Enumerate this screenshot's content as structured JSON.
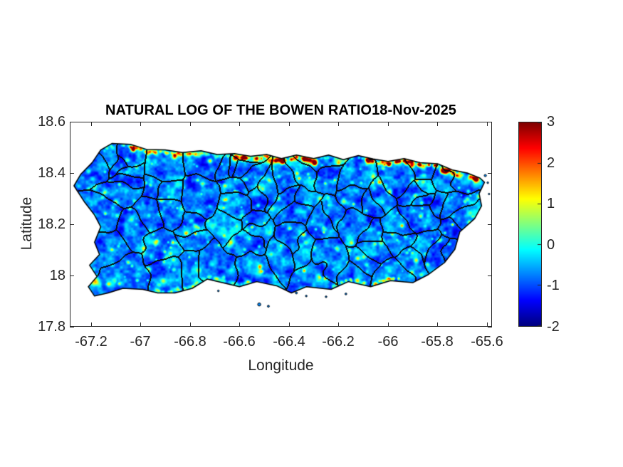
{
  "chart_data": {
    "type": "heatmap",
    "title": "NATURAL LOG OF THE BOWEN RATIO18-Nov-2025",
    "xlabel": "Longitude",
    "ylabel": "Latitude",
    "region": "Puerto Rico with municipality boundaries overlaid",
    "xlim": [
      -67.285,
      -65.58
    ],
    "ylim": [
      17.8,
      18.6
    ],
    "x_ticks": [
      -67.2,
      -67,
      -66.8,
      -66.6,
      -66.4,
      -66.2,
      -66,
      -65.8,
      -65.6
    ],
    "x_tick_labels": [
      "-67.2",
      "-67",
      "-66.8",
      "-66.6",
      "-66.4",
      "-66.2",
      "-66",
      "-65.8",
      "-65.6"
    ],
    "y_ticks": [
      17.8,
      18,
      18.2,
      18.4,
      18.6
    ],
    "y_tick_labels": [
      "17.8",
      "18",
      "18.2",
      "18.4",
      "18.6"
    ],
    "grid": false,
    "colorbar": {
      "min": -2,
      "max": 3,
      "ticks": [
        3,
        2,
        1,
        0,
        -1,
        -2
      ],
      "tick_labels": [
        "3",
        "2",
        "1",
        "0",
        "-1",
        "-2"
      ],
      "colormap": "jet",
      "position": "right"
    },
    "values_note": "ln(Bowen ratio) over Puerto Rico: mostly -1.3 to 0.2 (blue/cyan mottle) with green-yellow speckles; orange hotspots (~1.5-2) in strips along the north coast and a large orange patch at the Cabo Rojo salt flats (southwest tip); sea is white",
    "coastline": [
      [
        -67.16,
        18.49
      ],
      [
        -67.115,
        18.515
      ],
      [
        -67.04,
        18.512
      ],
      [
        -66.975,
        18.492
      ],
      [
        -66.9,
        18.49
      ],
      [
        -66.83,
        18.48
      ],
      [
        -66.755,
        18.487
      ],
      [
        -66.69,
        18.472
      ],
      [
        -66.62,
        18.476
      ],
      [
        -66.555,
        18.465
      ],
      [
        -66.49,
        18.472
      ],
      [
        -66.43,
        18.456
      ],
      [
        -66.37,
        18.47
      ],
      [
        -66.3,
        18.456
      ],
      [
        -66.24,
        18.47
      ],
      [
        -66.18,
        18.452
      ],
      [
        -66.12,
        18.468
      ],
      [
        -66.06,
        18.455
      ],
      [
        -66.0,
        18.445
      ],
      [
        -65.935,
        18.456
      ],
      [
        -65.87,
        18.44
      ],
      [
        -65.8,
        18.436
      ],
      [
        -65.74,
        18.412
      ],
      [
        -65.68,
        18.4
      ],
      [
        -65.628,
        18.38
      ],
      [
        -65.61,
        18.364
      ],
      [
        -65.632,
        18.32
      ],
      [
        -65.622,
        18.272
      ],
      [
        -65.65,
        18.222
      ],
      [
        -65.71,
        18.17
      ],
      [
        -65.73,
        18.102
      ],
      [
        -65.772,
        18.05
      ],
      [
        -65.84,
        18.002
      ],
      [
        -65.9,
        17.972
      ],
      [
        -65.99,
        17.98
      ],
      [
        -66.07,
        17.956
      ],
      [
        -66.16,
        17.976
      ],
      [
        -66.23,
        17.946
      ],
      [
        -66.33,
        17.956
      ],
      [
        -66.39,
        17.932
      ],
      [
        -66.45,
        17.96
      ],
      [
        -66.53,
        17.976
      ],
      [
        -66.6,
        17.956
      ],
      [
        -66.66,
        17.97
      ],
      [
        -66.73,
        17.986
      ],
      [
        -66.79,
        17.95
      ],
      [
        -66.86,
        17.932
      ],
      [
        -66.93,
        17.932
      ],
      [
        -66.99,
        17.946
      ],
      [
        -67.07,
        17.95
      ],
      [
        -67.13,
        17.932
      ],
      [
        -67.185,
        17.92
      ],
      [
        -67.21,
        17.956
      ],
      [
        -67.175,
        17.996
      ],
      [
        -67.205,
        18.04
      ],
      [
        -67.165,
        18.082
      ],
      [
        -67.185,
        18.13
      ],
      [
        -67.16,
        18.19
      ],
      [
        -67.185,
        18.236
      ],
      [
        -67.225,
        18.286
      ],
      [
        -67.268,
        18.35
      ],
      [
        -67.24,
        18.396
      ],
      [
        -67.195,
        18.44
      ]
    ],
    "islets": [
      [
        -66.52,
        17.887,
        2.2
      ],
      [
        -66.483,
        17.88,
        1.4
      ],
      [
        -66.37,
        17.932,
        1.4
      ],
      [
        -66.33,
        17.92,
        1.2
      ],
      [
        -66.25,
        17.917,
        1.2
      ],
      [
        -66.17,
        17.928,
        1.3
      ],
      [
        -65.607,
        18.39,
        1.6
      ],
      [
        -65.597,
        18.362,
        1.2
      ],
      [
        -66.685,
        17.94,
        1.2
      ],
      [
        -65.592,
        18.318,
        1.1
      ]
    ],
    "hotspots": [
      [
        -67.0,
        18.497,
        2.3,
        2.5
      ],
      [
        -66.72,
        18.448,
        2.3,
        3.0
      ],
      [
        -66.43,
        18.45,
        2.5,
        4.0
      ],
      [
        -66.37,
        18.465,
        2.4,
        3.0
      ],
      [
        -66.47,
        18.44,
        2.2,
        2.5
      ],
      [
        -66.0,
        18.44,
        2.3,
        3.0
      ],
      [
        -65.885,
        18.375,
        2.3,
        2.5
      ],
      [
        -65.945,
        18.195,
        2.2,
        2.0
      ],
      [
        -65.74,
        18.2,
        2.2,
        2.0
      ],
      [
        -66.36,
        18.38,
        2.2,
        2.0
      ],
      [
        -67.185,
        17.98,
        2.5,
        5.5
      ],
      [
        -66.55,
        18.19,
        1.8,
        2.0
      ],
      [
        -66.34,
        18.02,
        2.0,
        2.0
      ],
      [
        -66.87,
        18.13,
        1.7,
        2.0
      ],
      [
        -66.62,
        18.33,
        1.8,
        2.0
      ],
      [
        -66.14,
        18.28,
        1.9,
        2.0
      ]
    ],
    "coast_strips": {
      "north_orange": [
        [
          -67.06,
          -66.94,
          2.2
        ],
        [
          -66.9,
          -66.72,
          1.6
        ],
        [
          -66.62,
          -66.28,
          2.4
        ],
        [
          -66.08,
          -65.8,
          2.2
        ],
        [
          -65.78,
          -65.64,
          2.3
        ]
      ],
      "north_cyan": [
        [
          -67.15,
          -65.65,
          0.7
        ]
      ],
      "south_orange": [
        [
          -66.22,
          -66.1,
          1.8
        ],
        [
          -66.06,
          -65.95,
          1.9
        ]
      ],
      "south_cyan": [
        [
          -66.95,
          -66.55,
          0.9
        ]
      ]
    },
    "render": {
      "seed": 42,
      "municipality_cells": 80,
      "speckles": 290,
      "base_value": -0.78,
      "noise_amps": [
        0.5,
        0.38,
        0.2
      ],
      "noise_cells": [
        14,
        6,
        3
      ],
      "boundary_warp": 7
    }
  }
}
